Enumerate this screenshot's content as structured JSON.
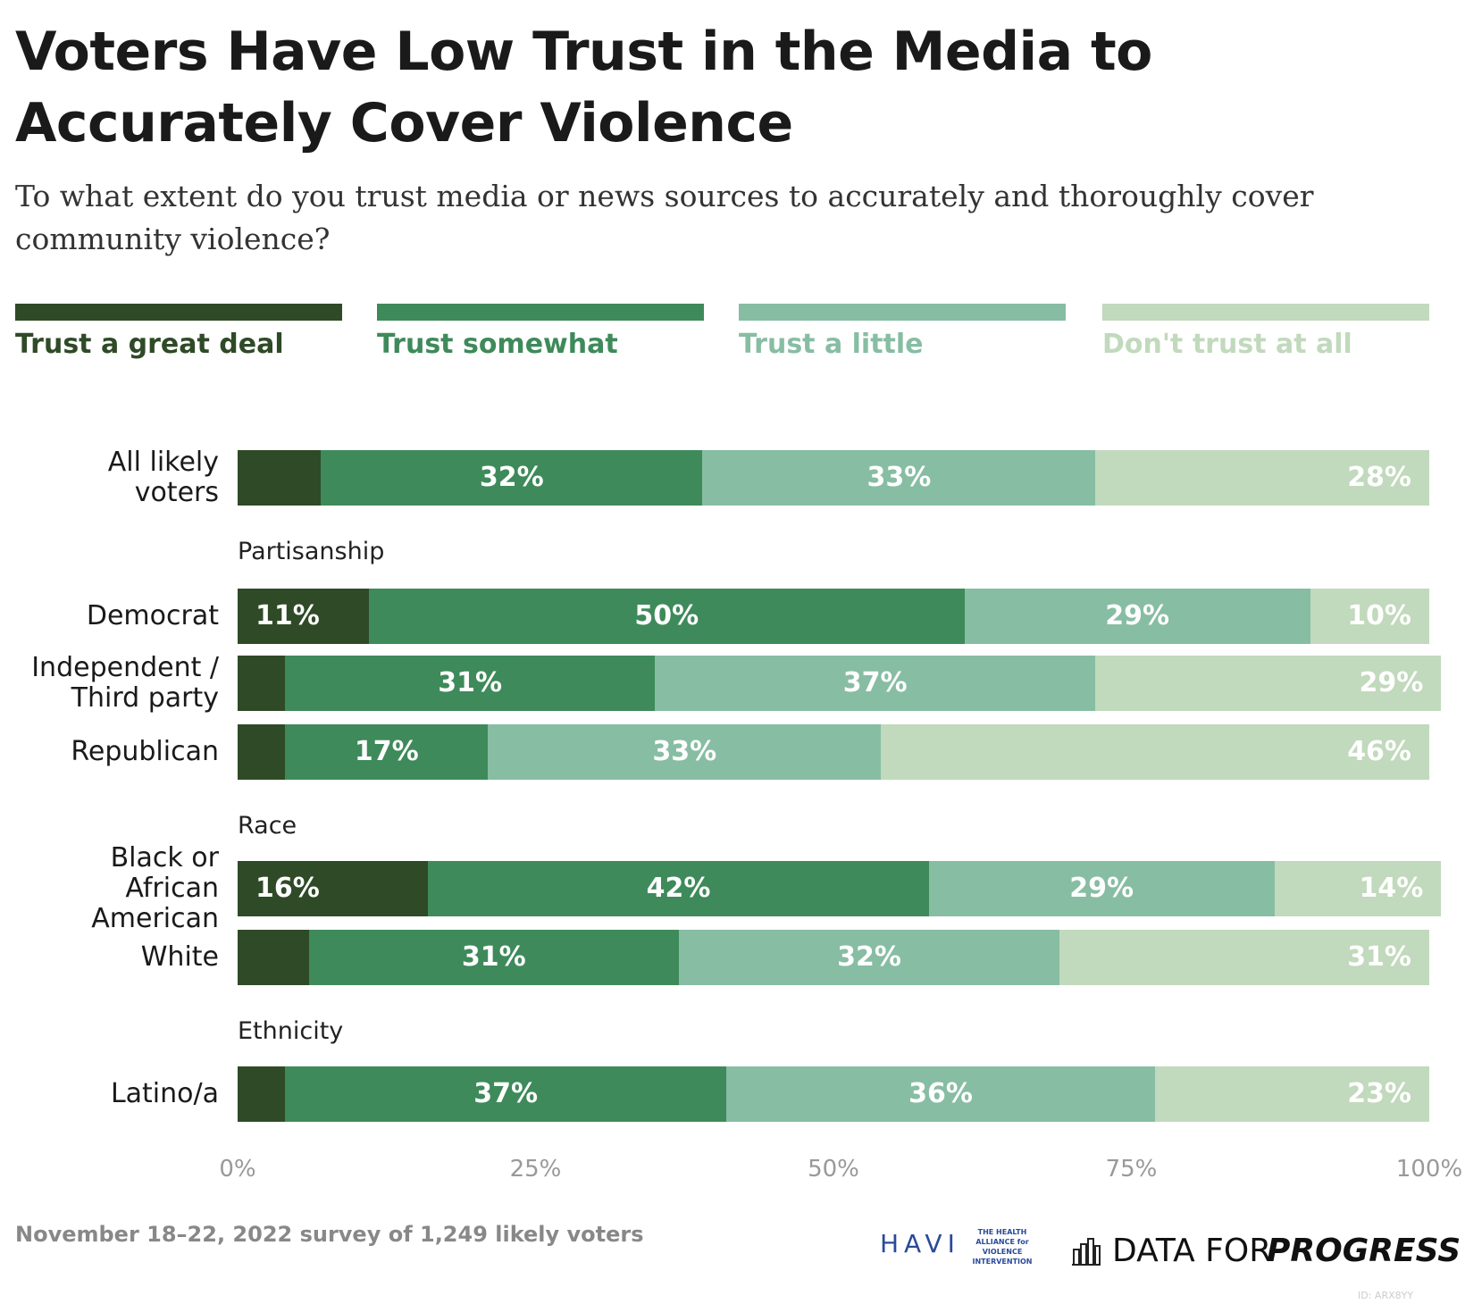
{
  "chart_data": {
    "type": "stacked-bar-horizontal",
    "title": "Voters Have Low Trust in the Media to Accurately Cover Violence",
    "subtitle": "To what extent do you trust media or news sources to accurately and thoroughly cover community violence?",
    "groups": [
      {
        "categories": [
          "All likely voters"
        ]
      },
      {
        "label": "Partisanship",
        "categories": [
          "Democrat",
          "Independent / Third party",
          "Republican"
        ]
      },
      {
        "label": "Race",
        "categories": [
          "Black or African American",
          "White"
        ]
      },
      {
        "label": "Ethnicity",
        "categories": [
          "Latino/a"
        ]
      }
    ],
    "series": [
      {
        "name": "Trust a great deal",
        "color": "#2f4a27",
        "values": [
          7,
          11,
          4,
          4,
          16,
          6,
          4
        ],
        "value_labels": [
          null,
          "11%",
          null,
          null,
          "16%",
          null,
          null
        ]
      },
      {
        "name": "Trust somewhat",
        "color": "#3e8a5a",
        "values": [
          32,
          50,
          31,
          17,
          42,
          31,
          37
        ],
        "value_labels": [
          "32%",
          "50%",
          "31%",
          "17%",
          "42%",
          "31%",
          "37%"
        ]
      },
      {
        "name": "Trust a little",
        "color": "#87bda3",
        "values": [
          33,
          29,
          37,
          33,
          29,
          32,
          36
        ],
        "value_labels": [
          "33%",
          "29%",
          "37%",
          "33%",
          "29%",
          "32%",
          "36%"
        ]
      },
      {
        "name": "Don't trust at all",
        "color": "#c1d9bc",
        "values": [
          28,
          10,
          29,
          46,
          14,
          31,
          23
        ],
        "value_labels": [
          "28%",
          "10%",
          "29%",
          "46%",
          "14%",
          "31%",
          "23%"
        ]
      }
    ],
    "xlim": [
      0,
      100
    ],
    "xticks": [
      {
        "value": 0,
        "label": "0%"
      },
      {
        "value": 25,
        "label": "25%"
      },
      {
        "value": 50,
        "label": "50%"
      },
      {
        "value": 75,
        "label": "75%"
      },
      {
        "value": 100,
        "label": "100%"
      }
    ],
    "grid": false,
    "legend": "top",
    "footer": {
      "source": "November 18–22, 2022 survey of 1,249 likely voters",
      "logos": [
        "HAVI",
        "THE HEALTH ALLIANCE for VIOLENCE INTERVENTION",
        "DATA FOR",
        "PROGRESS"
      ],
      "id": "ID: ARX8YY"
    }
  }
}
